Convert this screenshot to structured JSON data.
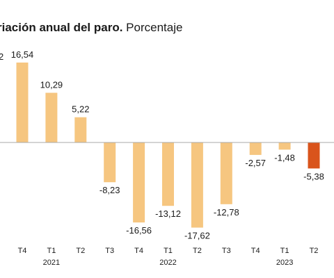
{
  "title": {
    "bold": "riación anual del paro.",
    "normal": "Porcentaje"
  },
  "cut_label": "2",
  "colors": {
    "bar": "#f6c680",
    "highlight": "#d9541c",
    "zero_line": "#a8a8a8",
    "text": "#1a1a1a"
  },
  "chart_data": {
    "type": "bar",
    "title": "riación anual del paro. Porcentaje",
    "categories": [
      "T4",
      "T1",
      "T2",
      "T3",
      "T4",
      "T1",
      "T2",
      "T3",
      "T4",
      "T1",
      "T2"
    ],
    "years": [
      {
        "label": "2021",
        "at": 1
      },
      {
        "label": "2022",
        "at": 5
      },
      {
        "label": "2023",
        "at": 9
      }
    ],
    "values": [
      16.54,
      10.29,
      5.22,
      -8.23,
      -16.56,
      -13.12,
      -17.62,
      -12.78,
      -2.57,
      -1.48,
      -5.38
    ],
    "labels": [
      "16,54",
      "10,29",
      "5,22",
      "-8,23",
      "-16,56",
      "-13,12",
      "-17,62",
      "-12,78",
      "-2,57",
      "-1,48",
      "-5,38"
    ],
    "highlight_index": 10,
    "ylim": [
      -20,
      20
    ],
    "grid": false,
    "legend": "none"
  }
}
